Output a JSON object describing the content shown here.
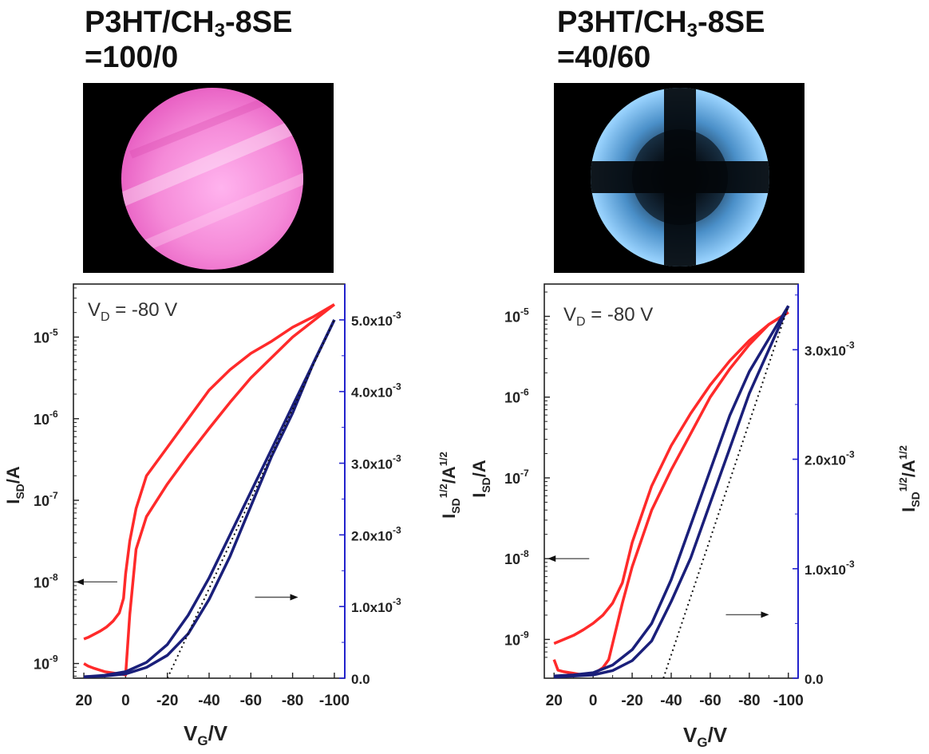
{
  "panels": [
    {
      "title_line1_prefix": "P3HT/CH",
      "title_sub": "3",
      "title_line1_suffix": "-8SE",
      "title_line2": "=100/0",
      "micrograph": "pink-uniform-disc"
    },
    {
      "title_line1_prefix": "P3HT/CH",
      "title_sub": "3",
      "title_line1_suffix": "-8SE",
      "title_line2": "=40/60",
      "micrograph": "blue-maltese-cross-disc"
    }
  ],
  "colors": {
    "transfer_curve": "#ff2a2a",
    "sqrt_curve": "#1a1f7a",
    "right_axis": "#2222cc",
    "fit_line": "#111111"
  },
  "chart_data": [
    {
      "type": "line",
      "annotation_main": "V",
      "annotation_sub": "D",
      "annotation_rest": " = -80 V",
      "x_tick_labels": [
        "20",
        "0",
        "-20",
        "-40",
        "-60",
        "-80",
        "-100"
      ],
      "x_ticks": [
        20,
        0,
        -20,
        -40,
        -60,
        -80,
        -100
      ],
      "xlim": [
        25,
        -105
      ],
      "xlabel_main": "V",
      "xlabel_sub": "G",
      "xlabel_rest": "/V",
      "ylabel_left_main": "I",
      "ylabel_left_sub": "SD",
      "ylabel_left_rest": "/A",
      "ylabel_right_main": "I",
      "ylabel_right_sub": "SD",
      "ylabel_right_sup": "1/2",
      "ylabel_right_rest": "/A",
      "ylabel_right_sup2": "1/2",
      "left_ticks": [
        {
          "mant": "10",
          "exp": "-9",
          "v": -9
        },
        {
          "mant": "10",
          "exp": "-8",
          "v": -8
        },
        {
          "mant": "10",
          "exp": "-7",
          "v": -7
        },
        {
          "mant": "10",
          "exp": "-6",
          "v": -6
        },
        {
          "mant": "10",
          "exp": "-5",
          "v": -5
        }
      ],
      "left_log_range": [
        -9.18,
        -4.35
      ],
      "right_ticks": [
        {
          "mant": "0.0",
          "exp": "",
          "v": 0
        },
        {
          "mant": "1.0x10",
          "exp": "-3",
          "v": 0.001
        },
        {
          "mant": "2.0x10",
          "exp": "-3",
          "v": 0.002
        },
        {
          "mant": "3.0x10",
          "exp": "-3",
          "v": 0.003
        },
        {
          "mant": "4.0x10",
          "exp": "-3",
          "v": 0.004
        },
        {
          "mant": "5.0x10",
          "exp": "-3",
          "v": 0.005
        }
      ],
      "right_range": [
        0,
        0.0055
      ],
      "series": [
        {
          "axis": "left",
          "kind": "log-current",
          "x": [
            20,
            18,
            15,
            12,
            9,
            6,
            3,
            1,
            0,
            -2,
            -5,
            -10,
            -20,
            -30,
            -40,
            -50,
            -60,
            -70,
            -80,
            -90,
            -100
          ],
          "log_y": [
            -8.7,
            -8.68,
            -8.64,
            -8.6,
            -8.55,
            -8.48,
            -8.38,
            -8.2,
            -7.9,
            -7.5,
            -7.1,
            -6.7,
            -6.35,
            -6.0,
            -5.65,
            -5.4,
            -5.2,
            -5.05,
            -4.88,
            -4.75,
            -4.6
          ]
        },
        {
          "axis": "left",
          "kind": "log-current",
          "x": [
            20,
            18,
            15,
            10,
            5,
            2,
            0,
            -2,
            -5,
            -10,
            -20,
            -30,
            -40,
            -50,
            -60,
            -70,
            -80,
            -90,
            -100
          ],
          "log_y": [
            -9.0,
            -9.03,
            -9.06,
            -9.1,
            -9.12,
            -9.13,
            -9.14,
            -8.4,
            -7.6,
            -7.2,
            -6.8,
            -6.45,
            -6.12,
            -5.8,
            -5.5,
            -5.25,
            -5.0,
            -4.8,
            -4.6
          ]
        },
        {
          "axis": "right",
          "kind": "sqrt-current",
          "x": [
            20,
            10,
            0,
            -10,
            -20,
            -30,
            -40,
            -50,
            -60,
            -70,
            -80,
            -90,
            -100
          ],
          "y": [
            2e-05,
            4e-05,
            9e-05,
            0.00022,
            0.00047,
            0.00088,
            0.0014,
            0.002,
            0.0026,
            0.0032,
            0.0038,
            0.0044,
            0.005
          ]
        },
        {
          "axis": "right",
          "kind": "sqrt-current",
          "x": [
            20,
            10,
            0,
            -10,
            -20,
            -30,
            -40,
            -50,
            -60,
            -70,
            -80,
            -90,
            -100
          ],
          "y": [
            2e-05,
            3e-05,
            6e-05,
            0.00015,
            0.00032,
            0.00062,
            0.0011,
            0.0017,
            0.0024,
            0.0031,
            0.0037,
            0.0044,
            0.005
          ]
        },
        {
          "axis": "right",
          "kind": "fit-line",
          "x": [
            -20,
            -100
          ],
          "y": [
            0.0,
            0.005
          ]
        }
      ],
      "arrow_left_x": 4,
      "arrow_left_logy": -8.0,
      "arrow_right_x": -62,
      "arrow_right_y": 0.00113
    },
    {
      "type": "line",
      "annotation_main": "V",
      "annotation_sub": "D",
      "annotation_rest": " = -80 V",
      "x_tick_labels": [
        "20",
        "0",
        "-20",
        "-40",
        "-60",
        "-80",
        "-100"
      ],
      "x_ticks": [
        20,
        0,
        -20,
        -40,
        -60,
        -80,
        -100
      ],
      "xlim": [
        25,
        -105
      ],
      "xlabel_main": "V",
      "xlabel_sub": "G",
      "xlabel_rest": "/V",
      "ylabel_left_main": "I",
      "ylabel_left_sub": "SD",
      "ylabel_left_rest": "/A",
      "ylabel_right_main": "I",
      "ylabel_right_sub": "SD",
      "ylabel_right_sup": "1/2",
      "ylabel_right_rest": "/A",
      "ylabel_right_sup2": "1/2",
      "left_ticks": [
        {
          "mant": "10",
          "exp": "-9",
          "v": -9
        },
        {
          "mant": "10",
          "exp": "-8",
          "v": -8
        },
        {
          "mant": "10",
          "exp": "-7",
          "v": -7
        },
        {
          "mant": "10",
          "exp": "-6",
          "v": -6
        },
        {
          "mant": "10",
          "exp": "-5",
          "v": -5
        }
      ],
      "left_log_range": [
        -9.48,
        -4.6
      ],
      "right_ticks": [
        {
          "mant": "0.0",
          "exp": "",
          "v": 0
        },
        {
          "mant": "1.0x10",
          "exp": "-3",
          "v": 0.001
        },
        {
          "mant": "2.0x10",
          "exp": "-3",
          "v": 0.002
        },
        {
          "mant": "3.0x10",
          "exp": "-3",
          "v": 0.003
        }
      ],
      "right_range": [
        0,
        0.0036
      ],
      "series": [
        {
          "axis": "left",
          "kind": "log-current",
          "x": [
            20,
            15,
            10,
            5,
            0,
            -5,
            -10,
            -15,
            -20,
            -30,
            -40,
            -50,
            -60,
            -70,
            -80,
            -90,
            -100
          ],
          "log_y": [
            -9.05,
            -9.0,
            -8.95,
            -8.88,
            -8.8,
            -8.7,
            -8.55,
            -8.3,
            -7.8,
            -7.1,
            -6.6,
            -6.2,
            -5.85,
            -5.55,
            -5.3,
            -5.1,
            -4.95
          ]
        },
        {
          "axis": "left",
          "kind": "log-current",
          "x": [
            20,
            18,
            15,
            10,
            5,
            0,
            -5,
            -8,
            -10,
            -12,
            -15,
            -20,
            -30,
            -40,
            -50,
            -60,
            -70,
            -80,
            -90,
            -100
          ],
          "log_y": [
            -9.25,
            -9.38,
            -9.4,
            -9.42,
            -9.44,
            -9.43,
            -9.35,
            -9.25,
            -9.05,
            -8.85,
            -8.55,
            -8.1,
            -7.4,
            -6.9,
            -6.45,
            -6.0,
            -5.65,
            -5.35,
            -5.1,
            -4.95
          ]
        },
        {
          "axis": "right",
          "kind": "sqrt-current",
          "x": [
            20,
            10,
            0,
            -10,
            -20,
            -30,
            -40,
            -50,
            -60,
            -70,
            -80,
            -90,
            -100
          ],
          "y": [
            2e-05,
            3e-05,
            5e-05,
            0.00012,
            0.00026,
            0.0005,
            0.0009,
            0.0014,
            0.0019,
            0.0024,
            0.0028,
            0.0031,
            0.0034
          ]
        },
        {
          "axis": "right",
          "kind": "sqrt-current",
          "x": [
            20,
            10,
            0,
            -10,
            -20,
            -30,
            -40,
            -50,
            -60,
            -70,
            -80,
            -90,
            -100
          ],
          "y": [
            1e-05,
            2e-05,
            3e-05,
            7e-05,
            0.00016,
            0.00034,
            0.0007,
            0.0011,
            0.0016,
            0.0021,
            0.0026,
            0.003,
            0.0034
          ]
        },
        {
          "axis": "right",
          "kind": "fit-line",
          "x": [
            -36,
            -100
          ],
          "y": [
            0.0,
            0.0034
          ]
        }
      ],
      "arrow_left_x": 2,
      "arrow_left_logy": -8.0,
      "arrow_right_x": -68,
      "arrow_right_y": 0.00058
    }
  ]
}
